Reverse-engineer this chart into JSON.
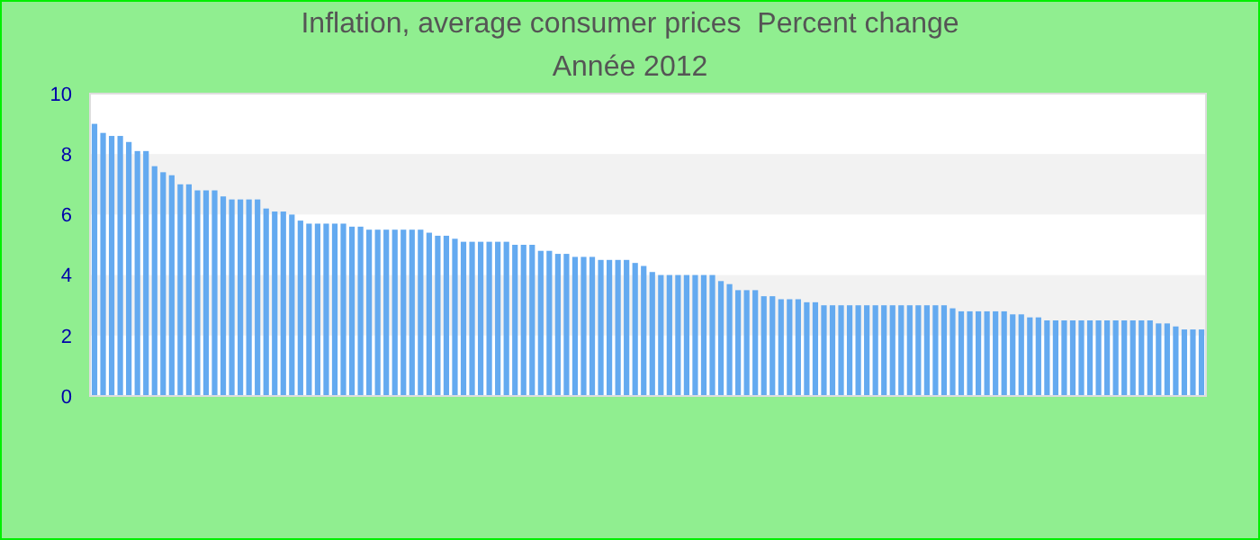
{
  "chart_data": {
    "type": "bar",
    "title": "Inflation, average consumer prices  Percent change",
    "subtitle": "Année 2012",
    "categories": [
      null,
      null,
      null,
      null,
      null,
      null,
      null,
      null,
      null,
      null,
      null,
      null,
      null,
      null,
      null,
      null,
      null,
      null,
      null,
      null,
      null,
      null,
      null,
      null,
      null,
      null,
      null,
      null,
      null,
      null,
      null,
      null,
      null,
      null,
      null,
      null,
      null,
      null,
      null,
      null,
      null,
      null,
      null,
      null,
      null,
      null,
      null,
      null,
      null,
      null,
      null,
      null,
      null,
      null,
      null,
      null,
      null,
      null,
      null,
      null,
      null,
      null,
      null,
      null,
      null,
      null,
      null,
      null,
      null,
      null,
      null,
      null,
      null,
      null,
      null,
      null,
      null,
      null,
      null,
      null,
      null,
      null,
      null,
      null,
      null,
      null,
      null,
      null,
      null,
      null,
      null,
      null,
      null,
      null,
      null,
      null,
      null,
      null,
      null,
      null,
      null,
      null,
      null,
      null,
      null,
      null,
      null,
      null,
      null,
      null,
      null,
      null,
      null,
      null,
      null,
      null,
      null,
      null,
      null,
      null,
      null,
      null,
      null,
      null,
      null,
      null,
      null,
      null,
      null,
      null
    ],
    "values": [
      9.0,
      8.7,
      8.6,
      8.6,
      8.4,
      8.1,
      8.1,
      7.6,
      7.4,
      7.3,
      7.0,
      7.0,
      6.8,
      6.8,
      6.8,
      6.6,
      6.5,
      6.5,
      6.5,
      6.5,
      6.2,
      6.1,
      6.1,
      6.0,
      5.8,
      5.7,
      5.7,
      5.7,
      5.7,
      5.7,
      5.6,
      5.6,
      5.5,
      5.5,
      5.5,
      5.5,
      5.5,
      5.5,
      5.5,
      5.4,
      5.3,
      5.3,
      5.2,
      5.1,
      5.1,
      5.1,
      5.1,
      5.1,
      5.1,
      5.0,
      5.0,
      5.0,
      4.8,
      4.8,
      4.7,
      4.7,
      4.6,
      4.6,
      4.6,
      4.5,
      4.5,
      4.5,
      4.5,
      4.4,
      4.3,
      4.1,
      4.0,
      4.0,
      4.0,
      4.0,
      4.0,
      4.0,
      4.0,
      3.8,
      3.7,
      3.5,
      3.5,
      3.5,
      3.3,
      3.3,
      3.2,
      3.2,
      3.2,
      3.1,
      3.1,
      3.0,
      3.0,
      3.0,
      3.0,
      3.0,
      3.0,
      3.0,
      3.0,
      3.0,
      3.0,
      3.0,
      3.0,
      3.0,
      3.0,
      3.0,
      2.9,
      2.8,
      2.8,
      2.8,
      2.8,
      2.8,
      2.8,
      2.7,
      2.7,
      2.6,
      2.6,
      2.5,
      2.5,
      2.5,
      2.5,
      2.5,
      2.5,
      2.5,
      2.5,
      2.5,
      2.5,
      2.5,
      2.5,
      2.5,
      2.4,
      2.4,
      2.3,
      2.2,
      2.2,
      2.2
    ],
    "color": "#64aaf0",
    "ylim": [
      0,
      10
    ],
    "yticks": [
      0,
      2,
      4,
      6,
      8,
      10
    ],
    "bands": [
      {
        "axis": "y",
        "from": 2,
        "to": 4,
        "color": "#f2f2f2"
      },
      {
        "axis": "y",
        "from": 6,
        "to": 8,
        "color": "#f2f2f2"
      }
    ]
  }
}
